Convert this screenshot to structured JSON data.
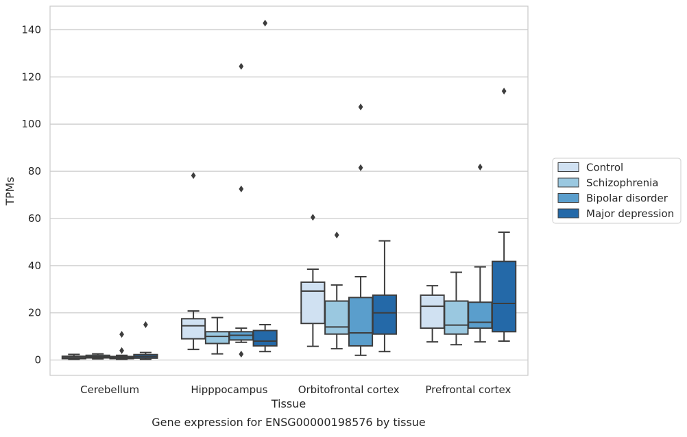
{
  "caption": "Gene expression for ENSG00000198576 by tissue",
  "chart_data": {
    "type": "box",
    "title": "",
    "xlabel": "Tissue",
    "ylabel": "TPMs",
    "ylim": [
      -6.5,
      150
    ],
    "yticks": [
      0,
      20,
      40,
      60,
      80,
      100,
      120,
      140
    ],
    "grid": "horizontal",
    "legend_position": "right",
    "categories": [
      "Cerebellum",
      "Hipppocampus",
      "Orbitofrontal cortex",
      "Prefrontal cortex"
    ],
    "series": [
      {
        "name": "Control",
        "color": "#d0e1f2",
        "boxes": [
          {
            "whisker_low": 0.3,
            "q1": 0.6,
            "median": 1.0,
            "q3": 1.6,
            "whisker_high": 2.4,
            "outliers": []
          },
          {
            "whisker_low": 4.5,
            "q1": 9.0,
            "median": 14.5,
            "q3": 17.5,
            "whisker_high": 20.8,
            "outliers": [
              78.2
            ]
          },
          {
            "whisker_low": 5.8,
            "q1": 15.5,
            "median": 29.2,
            "q3": 33.0,
            "whisker_high": 38.5,
            "outliers": [
              60.5
            ]
          },
          {
            "whisker_low": 7.7,
            "q1": 13.5,
            "median": 22.8,
            "q3": 27.5,
            "whisker_high": 31.5,
            "outliers": []
          }
        ]
      },
      {
        "name": "Schizophrenia",
        "color": "#9ac8e0",
        "boxes": [
          {
            "whisker_low": 0.5,
            "q1": 0.9,
            "median": 1.4,
            "q3": 2.0,
            "whisker_high": 2.6,
            "outliers": []
          },
          {
            "whisker_low": 2.6,
            "q1": 7.0,
            "median": 10.0,
            "q3": 12.0,
            "whisker_high": 18.0,
            "outliers": []
          },
          {
            "whisker_low": 4.8,
            "q1": 11.0,
            "median": 14.0,
            "q3": 25.0,
            "whisker_high": 31.8,
            "outliers": [
              53.0
            ]
          },
          {
            "whisker_low": 6.5,
            "q1": 11.0,
            "median": 14.8,
            "q3": 25.0,
            "whisker_high": 37.2,
            "outliers": []
          }
        ]
      },
      {
        "name": "Bipolar disorder",
        "color": "#5a9ecc",
        "boxes": [
          {
            "whisker_low": 0.3,
            "q1": 0.6,
            "median": 1.0,
            "q3": 1.5,
            "whisker_high": 2.0,
            "outliers": [
              4.0,
              10.9
            ]
          },
          {
            "whisker_low": 7.5,
            "q1": 8.5,
            "median": 10.5,
            "q3": 12.0,
            "whisker_high": 13.5,
            "outliers": [
              2.5,
              72.5,
              124.5
            ]
          },
          {
            "whisker_low": 2.0,
            "q1": 6.0,
            "median": 11.5,
            "q3": 26.5,
            "whisker_high": 35.3,
            "outliers": [
              81.5,
              107.3
            ]
          },
          {
            "whisker_low": 7.7,
            "q1": 13.5,
            "median": 16.0,
            "q3": 24.5,
            "whisker_high": 39.5,
            "outliers": [
              81.8
            ]
          }
        ]
      },
      {
        "name": "Major depression",
        "color": "#2469a8",
        "boxes": [
          {
            "whisker_low": 0.3,
            "q1": 0.8,
            "median": 1.5,
            "q3": 2.3,
            "whisker_high": 3.2,
            "outliers": [
              15.0
            ]
          },
          {
            "whisker_low": 3.6,
            "q1": 6.0,
            "median": 8.0,
            "q3": 12.5,
            "whisker_high": 15.0,
            "outliers": [
              142.8
            ]
          },
          {
            "whisker_low": 3.6,
            "q1": 11.0,
            "median": 20.0,
            "q3": 27.5,
            "whisker_high": 50.5,
            "outliers": []
          },
          {
            "whisker_low": 8.0,
            "q1": 12.0,
            "median": 24.0,
            "q3": 41.8,
            "whisker_high": 54.2,
            "outliers": [
              114.0
            ]
          }
        ]
      }
    ]
  }
}
